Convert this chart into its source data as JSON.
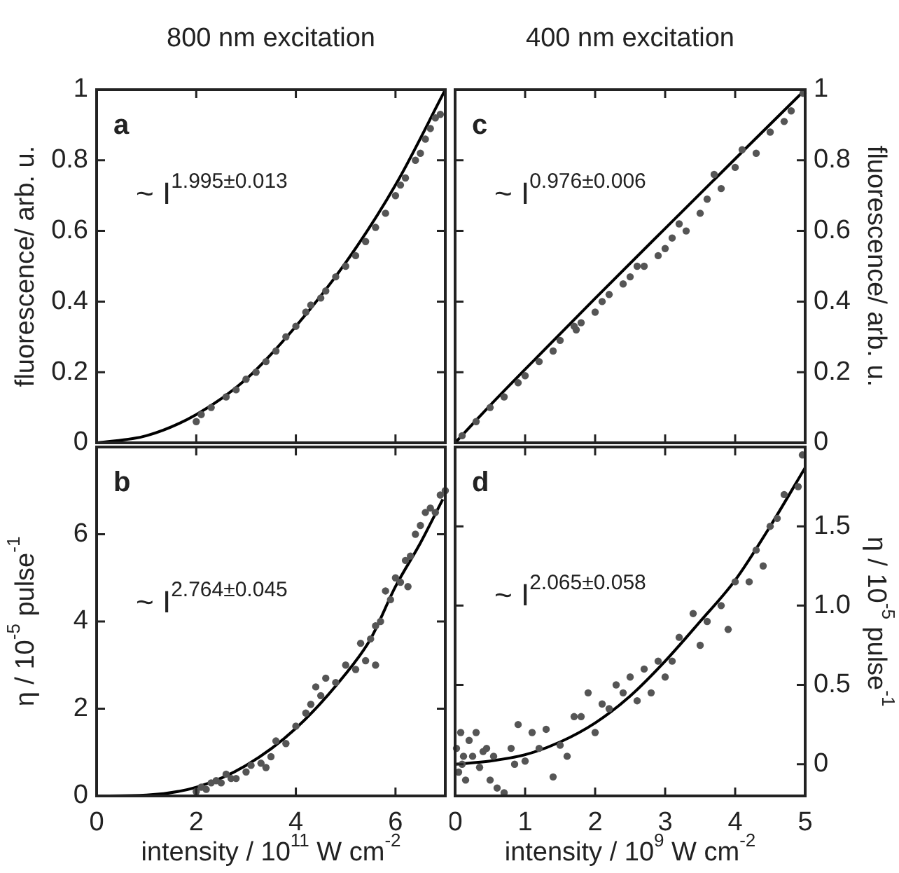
{
  "chart_data": [
    {
      "type": "scatter",
      "title": "800 nm excitation",
      "ylabel": "fluorescence/ arb. u.",
      "annotations": [
        "a",
        "~ I$^{1.995±0.013}$"
      ],
      "xlim": [
        0,
        7
      ],
      "xticks": [
        0,
        2,
        4,
        6
      ],
      "ylim": [
        0,
        1
      ],
      "yticks": [
        0,
        0.2,
        0.4,
        0.6,
        0.8,
        1
      ],
      "tick_labels": "y",
      "series": [
        {
          "color": "#555555",
          "marker": "circle",
          "x": [
            2.0,
            2.1,
            2.3,
            2.6,
            2.8,
            3.0,
            3.2,
            3.4,
            3.6,
            3.8,
            4.0,
            4.2,
            4.3,
            4.5,
            4.6,
            4.8,
            5.0,
            5.2,
            5.4,
            5.6,
            5.8,
            6.0,
            6.1,
            6.2,
            6.4,
            6.5,
            6.6,
            6.7,
            6.8,
            6.9
          ],
          "values": [
            0.06,
            0.08,
            0.1,
            0.13,
            0.15,
            0.18,
            0.2,
            0.23,
            0.26,
            0.3,
            0.33,
            0.37,
            0.39,
            0.41,
            0.43,
            0.47,
            0.5,
            0.53,
            0.57,
            0.61,
            0.65,
            0.7,
            0.73,
            0.75,
            0.8,
            0.82,
            0.86,
            0.89,
            0.92,
            0.93
          ]
        },
        {
          "type": "line",
          "marker": "none",
          "color": "#000000",
          "x": [
            0,
            1,
            2,
            3,
            4,
            5,
            6,
            7
          ],
          "values": [
            0,
            0.02,
            0.08,
            0.18,
            0.33,
            0.51,
            0.73,
            1
          ]
        }
      ]
    },
    {
      "type": "scatter",
      "title": "400 nm excitation",
      "y2label": "fluorescence/ arb. u.",
      "annotations": [
        "c",
        "~ I$^{0.976±0.006}$"
      ],
      "xlim": [
        0,
        5
      ],
      "xticks": [
        0,
        1,
        2,
        3,
        4,
        5
      ],
      "y2lim": [
        0,
        1
      ],
      "y2ticks": [
        0,
        0.2,
        0.4,
        0.6,
        0.8,
        1
      ],
      "tick_labels": "y",
      "series": [
        {
          "color": "#555555",
          "marker": "circle",
          "axis": "y2",
          "x": [
            0.1,
            0.3,
            0.5,
            0.7,
            0.9,
            1.0,
            1.2,
            1.4,
            1.5,
            1.7,
            1.73,
            1.8,
            2.0,
            2.1,
            2.2,
            2.4,
            2.5,
            2.6,
            2.7,
            2.9,
            3.0,
            3.1,
            3.2,
            3.3,
            3.5,
            3.6,
            3.7,
            3.8,
            4.0,
            4.1,
            4.3,
            4.5,
            4.7,
            4.8,
            4.97
          ],
          "values": [
            0.02,
            0.06,
            0.1,
            0.13,
            0.17,
            0.19,
            0.23,
            0.26,
            0.29,
            0.33,
            0.32,
            0.34,
            0.37,
            0.4,
            0.42,
            0.45,
            0.47,
            0.5,
            0.5,
            0.53,
            0.55,
            0.58,
            0.62,
            0.6,
            0.65,
            0.69,
            0.76,
            0.72,
            0.78,
            0.83,
            0.82,
            0.88,
            0.91,
            0.94,
            0.99
          ]
        },
        {
          "type": "line",
          "marker": "none",
          "color": "#000000",
          "axis": "y2",
          "x": [
            0,
            0.5,
            1,
            2,
            3,
            4,
            5
          ],
          "values": [
            0,
            0.106,
            0.208,
            0.409,
            0.607,
            0.804,
            1
          ]
        }
      ]
    },
    {
      "type": "scatter",
      "xlabel": "intensity / 10$^{11}$ W cm$^{-2}$",
      "ylabel": "η / 10$^{-5}$ pulse$^{-1}$",
      "annotations": [
        "b",
        "~ I$^{2.764±0.045}$"
      ],
      "xlim": [
        0,
        7
      ],
      "xticks": [
        0,
        2,
        4,
        6
      ],
      "ylim": [
        0,
        8
      ],
      "yticks": [
        0,
        2,
        4,
        6
      ],
      "series": [
        {
          "color": "#555555",
          "marker": "circle",
          "x": [
            2.0,
            2.1,
            2.2,
            2.3,
            2.4,
            2.5,
            2.6,
            2.7,
            2.8,
            3.0,
            3.1,
            3.3,
            3.4,
            3.5,
            3.6,
            3.8,
            4.0,
            4.2,
            4.3,
            4.4,
            4.5,
            4.6,
            4.8,
            5.0,
            5.2,
            5.3,
            5.4,
            5.5,
            5.6,
            5.6,
            5.7,
            5.8,
            5.9,
            6.0,
            6.1,
            6.2,
            6.25,
            6.3,
            6.4,
            6.5,
            6.6,
            6.7,
            6.8,
            6.9,
            7.0
          ],
          "values": [
            0.1,
            0.2,
            0.15,
            0.3,
            0.35,
            0.3,
            0.5,
            0.4,
            0.4,
            0.55,
            0.7,
            0.75,
            0.65,
            0.9,
            1.26,
            1.2,
            1.6,
            1.9,
            2.1,
            2.5,
            2.3,
            2.7,
            2.6,
            3.0,
            2.9,
            3.5,
            3.1,
            3.6,
            3.9,
            3.0,
            4.0,
            4.7,
            4.5,
            5.0,
            4.9,
            5.4,
            4.8,
            5.5,
            6.0,
            6.2,
            6.5,
            6.6,
            6.5,
            6.9,
            7.0
          ]
        },
        {
          "type": "line",
          "marker": "none",
          "color": "#000000",
          "x": [
            0,
            1,
            2,
            3,
            4,
            5,
            5.5,
            6,
            6.5,
            6.95
          ],
          "values": [
            0,
            0.02,
            0.2,
            0.7,
            1.55,
            2.8,
            3.6,
            4.8,
            5.8,
            6.8
          ]
        }
      ]
    },
    {
      "type": "scatter",
      "xlabel": "intensity / 10$^{9}$ W cm$^{-2}$",
      "y2label": "η / 10$^{-5}$ pulse$^{-1}$",
      "annotations": [
        "d",
        "~ I$^{2.065±0.058}$"
      ],
      "xlim": [
        0,
        5
      ],
      "xticks": [
        0,
        1,
        2,
        3,
        4,
        5
      ],
      "y2lim": [
        -0.2,
        2.0
      ],
      "y2ticks": [
        0,
        {
          "value": 0.5,
          "label": "0.5"
        },
        {
          "value": 1,
          "label": "1.0"
        },
        {
          "value": 1.5,
          "label": "1.5"
        }
      ],
      "series": [
        {
          "color": "#555555",
          "marker": "circle",
          "axis": "y2",
          "x": [
            0.02,
            0.05,
            0.08,
            0.1,
            0.12,
            0.15,
            0.2,
            0.25,
            0.3,
            0.35,
            0.4,
            0.45,
            0.5,
            0.55,
            0.6,
            0.7,
            0.8,
            0.85,
            0.9,
            1.0,
            1.1,
            1.2,
            1.3,
            1.4,
            1.5,
            1.6,
            1.7,
            1.8,
            1.9,
            2.0,
            2.1,
            2.2,
            2.3,
            2.4,
            2.5,
            2.6,
            2.7,
            2.8,
            2.9,
            3.0,
            3.1,
            3.2,
            3.4,
            3.5,
            3.6,
            3.8,
            3.9,
            4.0,
            4.2,
            4.3,
            4.4,
            4.5,
            4.6,
            4.7,
            4.9,
            4.96
          ],
          "values": [
            0.1,
            -0.05,
            0.2,
            0.0,
            0.05,
            -0.1,
            0.15,
            0.05,
            0.2,
            -0.02,
            0.08,
            0.1,
            -0.1,
            0.05,
            -0.15,
            -0.18,
            0.1,
            0.0,
            0.25,
            0.02,
            0.2,
            0.1,
            0.22,
            -0.08,
            0.12,
            0.05,
            0.3,
            0.3,
            0.45,
            0.2,
            0.38,
            0.35,
            0.5,
            0.45,
            0.55,
            0.4,
            0.6,
            0.45,
            0.65,
            0.55,
            0.65,
            0.8,
            0.95,
            0.75,
            0.9,
            1.0,
            0.85,
            1.15,
            1.15,
            1.35,
            1.25,
            1.5,
            1.55,
            1.7,
            1.75,
            1.95
          ]
        },
        {
          "type": "line",
          "marker": "none",
          "color": "#000000",
          "axis": "y2",
          "x": [
            0,
            0.5,
            1,
            1.5,
            2,
            2.5,
            3,
            3.5,
            4,
            4.5,
            5
          ],
          "values": [
            0,
            0.02,
            0.06,
            0.14,
            0.26,
            0.43,
            0.65,
            0.9,
            1.16,
            1.5,
            1.87
          ]
        }
      ]
    }
  ]
}
